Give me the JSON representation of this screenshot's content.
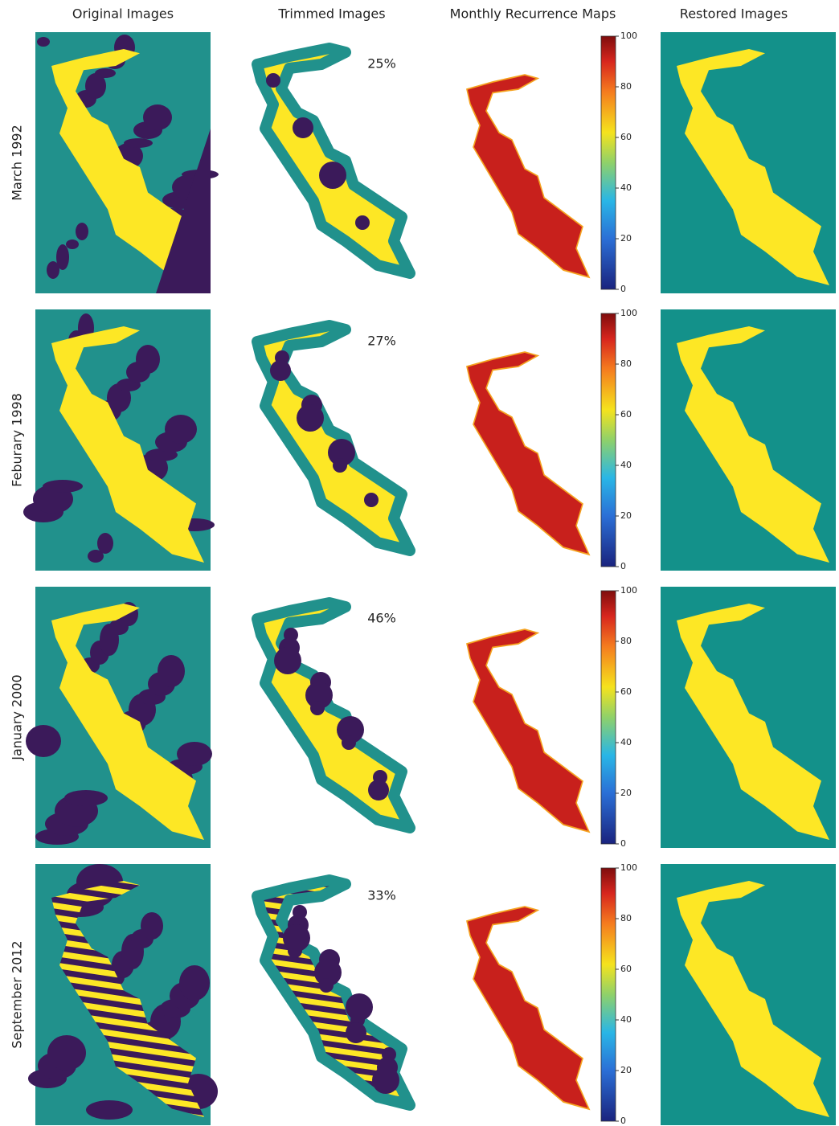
{
  "columns": [
    "Original Images",
    "Trimmed Images",
    "Monthly Recurrence Maps",
    "Restored Images"
  ],
  "rows": [
    {
      "label": "March 1992",
      "percent": "25%",
      "colorbar_ticks": [
        0,
        20,
        40,
        60,
        80,
        100
      ]
    },
    {
      "label": "Feburary 1998",
      "percent": "27%",
      "colorbar_ticks": [
        0,
        20,
        40,
        60,
        80,
        100
      ]
    },
    {
      "label": "January 2000",
      "percent": "46%",
      "colorbar_ticks": [
        0,
        20,
        40,
        60,
        80,
        100
      ]
    },
    {
      "label": "September 2012",
      "percent": "33%",
      "colorbar_ticks": [
        0,
        20,
        40,
        60,
        80,
        100
      ]
    }
  ]
}
